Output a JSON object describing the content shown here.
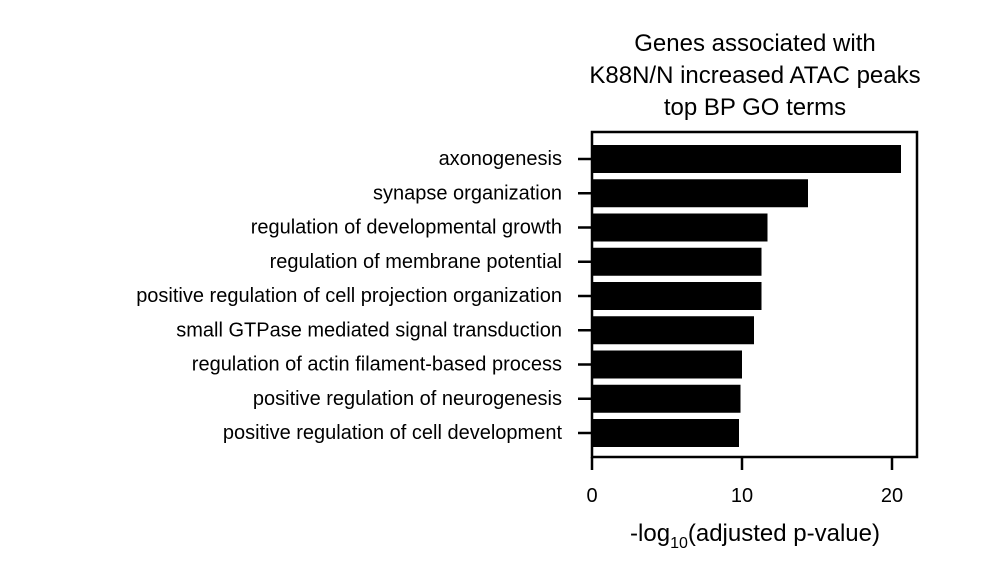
{
  "chart_data": {
    "type": "bar",
    "orientation": "horizontal",
    "title_lines": [
      "Genes associated with",
      "K88N/N increased ATAC peaks",
      "top BP GO terms"
    ],
    "categories": [
      "axonogenesis",
      "synapse organization",
      "regulation of developmental growth",
      "regulation of membrane potential",
      "positive regulation of cell projection organization",
      "small GTPase mediated signal transduction",
      "regulation of actin filament-based process",
      "positive regulation of neurogenesis",
      "positive regulation of cell development"
    ],
    "values": [
      20.6,
      14.4,
      11.7,
      11.3,
      11.3,
      10.8,
      10.0,
      9.9,
      9.8
    ],
    "xlabel": {
      "prefix": "-log",
      "subscript": "10",
      "suffix": "(adjusted p-value)"
    },
    "xticks": [
      0,
      10,
      20
    ],
    "xlim": [
      0,
      21.6
    ],
    "bar_color": "#000000",
    "grid": false,
    "legend": "none"
  }
}
